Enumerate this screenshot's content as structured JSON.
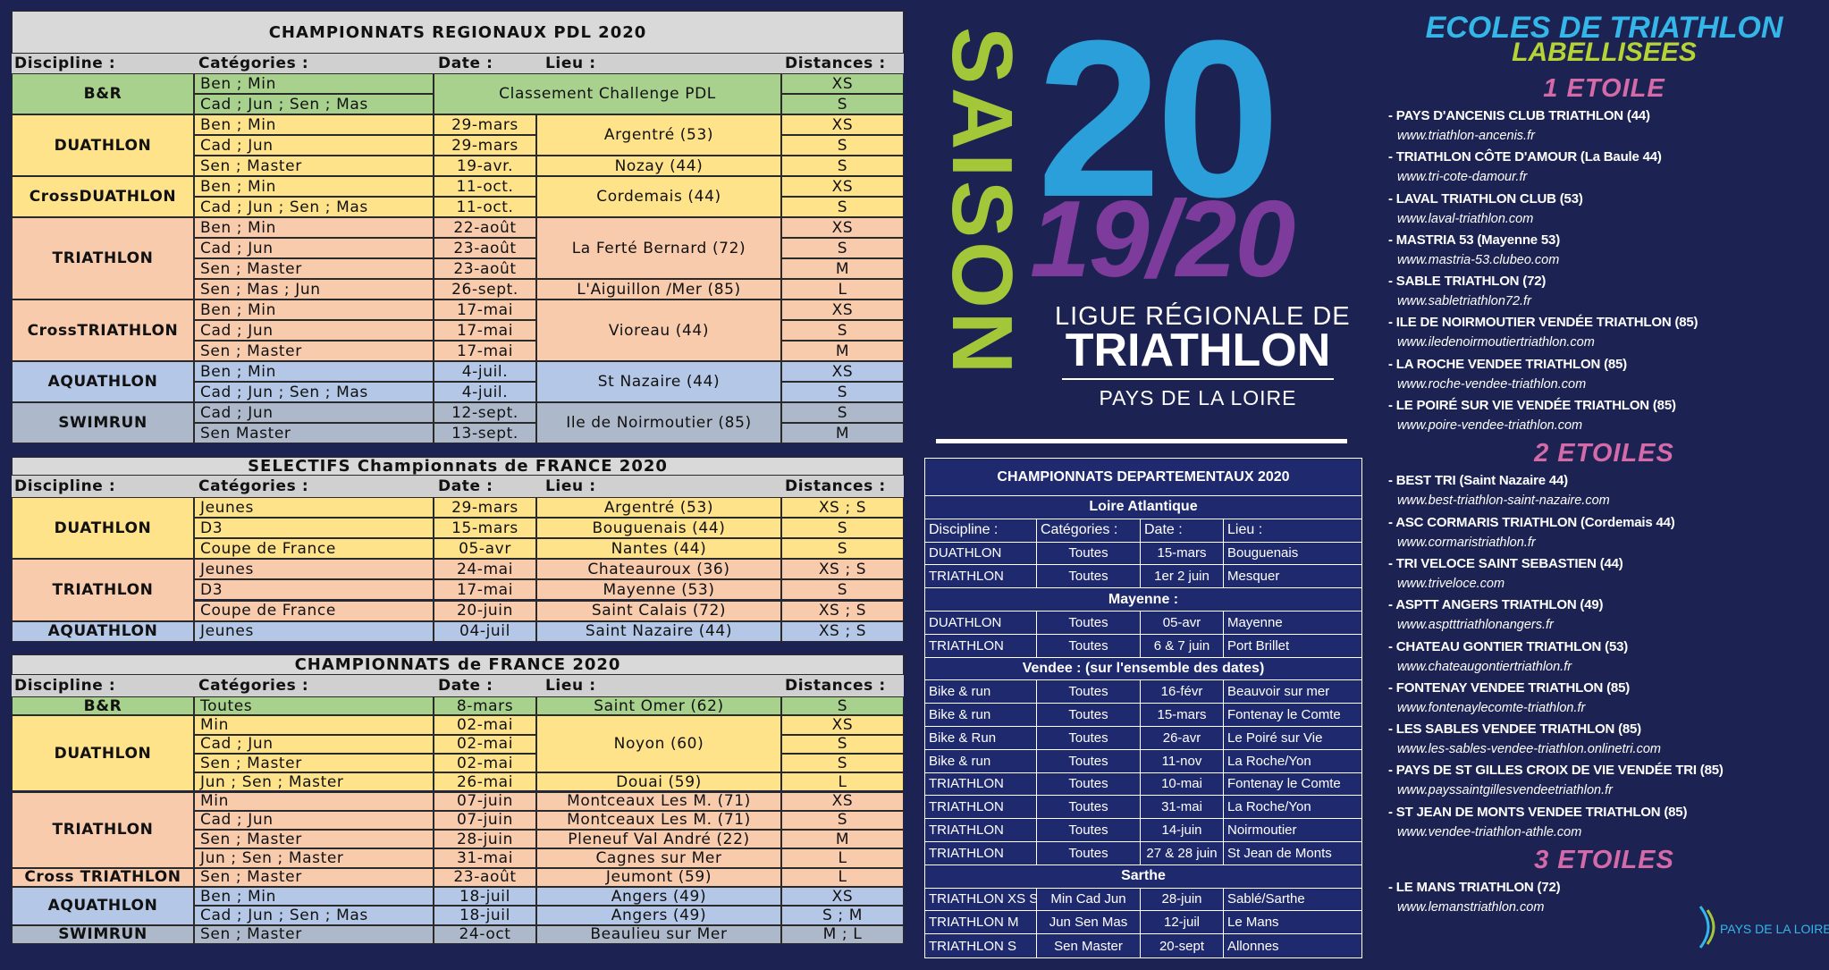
{
  "regional": {
    "title": "CHAMPIONNATS REGIONAUX  PDL 2020",
    "headers": [
      "Discipline :",
      "Catégories :",
      "Date :",
      "Lieu :",
      "Distances :"
    ],
    "groups": [
      {
        "discipline": "B&R",
        "color": "#a9d18e",
        "rows": [
          {
            "categories": "Ben ; Min",
            "lieu": "Classement Challenge PDL",
            "distance": "XS"
          },
          {
            "categories": "Cad ; Jun ; Sen ; Mas",
            "lieu": null,
            "distance": "S"
          }
        ]
      },
      {
        "discipline": "DUATHLON",
        "color": "#ffe38a",
        "rows": [
          {
            "categories": "Ben ; Min",
            "date": "29-mars",
            "lieu": "Argentré (53)",
            "distance": "XS"
          },
          {
            "categories": "Cad ; Jun",
            "date": "29-mars",
            "lieu": null,
            "distance": "S"
          },
          {
            "categories": "Sen ; Master",
            "date": "19-avr.",
            "lieu": "Nozay (44)",
            "distance": "S"
          }
        ]
      },
      {
        "discipline": "CrossDUATHLON",
        "color": "#ffe38a",
        "rows": [
          {
            "categories": "Ben ; Min",
            "date": "11-oct.",
            "lieu": "Cordemais (44)",
            "distance": "XS"
          },
          {
            "categories": "Cad ; Jun ; Sen ; Mas",
            "date": "11-oct.",
            "lieu": null,
            "distance": "S"
          }
        ]
      },
      {
        "discipline": "TRIATHLON",
        "color": "#f8cbad",
        "rows": [
          {
            "categories": "Ben ; Min",
            "date": "22-août",
            "lieu": "La Ferté Bernard (72)",
            "distance": "XS"
          },
          {
            "categories": "Cad ; Jun",
            "date": "23-août",
            "lieu": null,
            "distance": "S"
          },
          {
            "categories": "Sen ; Master",
            "date": "23-août",
            "lieu": null,
            "distance": "M"
          },
          {
            "categories": "Sen ; Mas ; Jun",
            "date": "26-sept.",
            "lieu": "L'Aiguillon /Mer (85)",
            "distance": "L"
          }
        ]
      },
      {
        "discipline": "CrossTRIATHLON",
        "color": "#f8cbad",
        "rows": [
          {
            "categories": "Ben ; Min",
            "date": "17-mai",
            "lieu": "Vioreau (44)",
            "distance": "XS"
          },
          {
            "categories": "Cad ; Jun",
            "date": "17-mai",
            "lieu": null,
            "distance": "S"
          },
          {
            "categories": "Sen ; Master",
            "date": "17-mai",
            "lieu": null,
            "distance": "M"
          }
        ]
      },
      {
        "discipline": "AQUATHLON",
        "color": "#b4c7e7",
        "rows": [
          {
            "categories": "Ben ; Min",
            "date": "4-juil.",
            "lieu": "St Nazaire (44)",
            "distance": "XS"
          },
          {
            "categories": "Cad ; Jun ; Sen ; Mas",
            "date": "4-juil.",
            "lieu": null,
            "distance": "S"
          }
        ]
      },
      {
        "discipline": "SWIMRUN",
        "color": "#adb9ca",
        "rows": [
          {
            "categories": "Cad ; Jun",
            "date": "12-sept.",
            "lieu": "Ile de Noirmoutier (85)",
            "distance": "S"
          },
          {
            "categories": "Sen Master",
            "date": "13-sept.",
            "lieu": null,
            "distance": "M"
          }
        ]
      }
    ]
  },
  "selectifs": {
    "title": "SELECTIFS Championnats de FRANCE 2020",
    "headers": [
      "Discipline :",
      "Catégories :",
      "Date :",
      "Lieu :",
      "Distances :"
    ],
    "groups": [
      {
        "discipline": "DUATHLON",
        "color": "#ffe38a",
        "rows": [
          {
            "categories": "Jeunes",
            "date": "29-mars",
            "lieu": "Argentré (53)",
            "distance": "XS ; S"
          },
          {
            "categories": "D3",
            "date": "15-mars",
            "lieu": "Bouguenais (44)",
            "distance": "S"
          },
          {
            "categories": "Coupe de France",
            "date": "05-avr",
            "lieu": "Nantes (44)",
            "distance": "S"
          }
        ]
      },
      {
        "discipline": "TRIATHLON",
        "color": "#f8cbad",
        "rows": [
          {
            "categories": "Jeunes",
            "date": "24-mai",
            "lieu": "Chateauroux (36)",
            "distance": "XS ; S"
          },
          {
            "categories": "D3",
            "date": "17-mai",
            "lieu": "Mayenne (53)",
            "distance": "S"
          },
          {
            "categories": "Coupe de France",
            "date": "20-juin",
            "lieu": "Saint Calais (72)",
            "distance": "XS ; S"
          }
        ]
      },
      {
        "discipline": "AQUATHLON",
        "color": "#b4c7e7",
        "rows": [
          {
            "categories": "Jeunes",
            "date": "04-juil",
            "lieu": "Saint Nazaire (44)",
            "distance": "XS ; S"
          }
        ]
      }
    ]
  },
  "france": {
    "title": "CHAMPIONNATS de FRANCE 2020",
    "headers": [
      "Discipline :",
      "Catégories :",
      "Date :",
      "Lieu :",
      "Distances :"
    ],
    "groups": [
      {
        "discipline": "B&R",
        "color": "#a9d18e",
        "rows": [
          {
            "categories": "Toutes",
            "date": "8-mars",
            "lieu": "Saint Omer (62)",
            "distance": "S"
          }
        ]
      },
      {
        "discipline": "DUATHLON",
        "color": "#ffe38a",
        "rows": [
          {
            "categories": "Min",
            "date": "02-mai",
            "lieu": "Noyon (60)",
            "distance": "XS"
          },
          {
            "categories": "Cad ; Jun",
            "date": "02-mai",
            "lieu": null,
            "distance": "S"
          },
          {
            "categories": "Sen ; Master",
            "date": "02-mai",
            "lieu": null,
            "distance": "S"
          },
          {
            "categories": "Jun ; Sen ; Master",
            "date": "26-mai",
            "lieu": "Douai (59)",
            "distance": "L"
          }
        ]
      },
      {
        "discipline": "TRIATHLON",
        "color": "#f8cbad",
        "rows": [
          {
            "categories": "Min",
            "date": "07-juin",
            "lieu": "Montceaux Les M. (71)",
            "distance": "XS"
          },
          {
            "categories": "Cad ; Jun",
            "date": "07-juin",
            "lieu": "Montceaux Les M. (71)",
            "distance": "S"
          },
          {
            "categories": "Sen ; Master",
            "date": "28-juin",
            "lieu": "Pleneuf Val André (22)",
            "distance": "M"
          },
          {
            "categories": "Jun ; Sen ; Master",
            "date": "31-mai",
            "lieu": "Cagnes sur Mer",
            "distance": "L"
          }
        ]
      },
      {
        "discipline": "Cross TRIATHLON",
        "color": "#f8cbad",
        "rows": [
          {
            "categories": "Sen ; Master",
            "date": "23-août",
            "lieu": "Jeumont (59)",
            "distance": "L"
          }
        ]
      },
      {
        "discipline": "AQUATHLON",
        "color": "#b4c7e7",
        "rows": [
          {
            "categories": "Ben ; Min",
            "date": "18-juil",
            "lieu": "Angers (49)",
            "distance": "XS"
          },
          {
            "categories": "Cad ; Jun ; Sen ; Mas",
            "date": "18-juil",
            "lieu": "Angers (49)",
            "distance": "S ; M"
          }
        ]
      },
      {
        "discipline": "SWIMRUN",
        "color": "#adb9ca",
        "rows": [
          {
            "categories": "Sen ; Master",
            "date": "24-oct",
            "lieu": "Beaulieu sur Mer",
            "distance": "M ; L"
          }
        ]
      }
    ]
  },
  "logo": {
    "vertical": "SAISON",
    "big": "20",
    "season": "19/20",
    "league_line1": "LIGUE RÉGIONALE DE",
    "league_line2": "TRIATHLON",
    "region": "PAYS DE LA LOIRE"
  },
  "departmental": {
    "title": "CHAMPIONNATS DEPARTEMENTAUX 2020",
    "headers": [
      "Discipline :",
      "Catégories :",
      "Date :",
      "Lieu :"
    ],
    "sections": [
      {
        "name": "Loire Atlantique",
        "rows": [
          [
            "DUATHLON",
            "Toutes",
            "15-mars",
            "Bouguenais"
          ],
          [
            "TRIATHLON",
            "Toutes",
            "1er 2 juin",
            "Mesquer"
          ]
        ]
      },
      {
        "name": "Mayenne :",
        "rows": [
          [
            "DUATHLON",
            "Toutes",
            "05-avr",
            "Mayenne"
          ],
          [
            "TRIATHLON",
            "Toutes",
            "6 & 7 juin",
            "Port Brillet"
          ]
        ]
      },
      {
        "name": "Vendee : (sur l'ensemble des dates)",
        "rows": [
          [
            "Bike & run",
            "Toutes",
            "16-févr",
            "Beauvoir sur mer"
          ],
          [
            "Bike & run",
            "Toutes",
            "15-mars",
            "Fontenay le Comte"
          ],
          [
            "Bike & Run",
            "Toutes",
            "26-avr",
            "Le Poiré sur Vie"
          ],
          [
            "Bike & run",
            "Toutes",
            "11-nov",
            "La Roche/Yon"
          ],
          [
            "TRIATHLON",
            "Toutes",
            "10-mai",
            "Fontenay le Comte"
          ],
          [
            "TRIATHLON",
            "Toutes",
            "31-mai",
            "La Roche/Yon"
          ],
          [
            "TRIATHLON",
            "Toutes",
            "14-juin",
            "Noirmoutier"
          ],
          [
            "TRIATHLON",
            "Toutes",
            "27 & 28 juin",
            "St Jean de Monts"
          ]
        ]
      },
      {
        "name": "Sarthe",
        "rows": [
          [
            "TRIATHLON XS S",
            "Min Cad Jun",
            "28-juin",
            "Sablé/Sarthe"
          ],
          [
            "TRIATHLON M",
            "Jun Sen Mas",
            "12-juil",
            "Le Mans"
          ],
          [
            "TRIATHLON S",
            "Sen Master",
            "20-sept",
            "Allonnes"
          ]
        ]
      }
    ]
  },
  "schools": {
    "title_line1": "ECOLES DE TRIATHLON",
    "title_line2": "LABELLISEES",
    "levels": [
      {
        "heading": "1 ETOILE",
        "clubs": [
          {
            "name": "- PAYS D'ANCENIS CLUB TRIATHLON (44)",
            "url": "www.triathlon-ancenis.fr"
          },
          {
            "name": "- TRIATHLON CÔTE D'AMOUR (La Baule 44)",
            "url": "www.tri-cote-damour.fr"
          },
          {
            "name": "- LAVAL TRIATHLON CLUB (53)",
            "url": "www.laval-triathlon.com"
          },
          {
            "name": "- MASTRIA 53  (Mayenne 53)",
            "url": "www.mastria-53.clubeo.com"
          },
          {
            "name": "- SABLE TRIATHLON (72)",
            "url": "www.sabletriathlon72.fr"
          },
          {
            "name": "- ILE DE NOIRMOUTIER VENDÉE TRIATHLON (85)",
            "url": "www.iledenoirmoutiertriathlon.com"
          },
          {
            "name": "- LA ROCHE VENDEE TRIATHLON (85)",
            "url": "www.roche-vendee-triathlon.com"
          },
          {
            "name": "- LE POIRÉ SUR VIE VENDÉE TRIATHLON (85)",
            "url": "www.poire-vendee-triathlon.com"
          }
        ]
      },
      {
        "heading": "2 ETOILES",
        "clubs": [
          {
            "name": "- BEST TRI (Saint Nazaire 44)",
            "url": "www.best-triathlon-saint-nazaire.com"
          },
          {
            "name": "- ASC CORMARIS TRIATHLON (Cordemais 44)",
            "url": "www.cormaristriathlon.fr"
          },
          {
            "name": "- TRI VELOCE SAINT SEBASTIEN (44)",
            "url": "www.triveloce.com"
          },
          {
            "name": "- ASPTT ANGERS TRIATHLON (49)",
            "url": "www.asptttriathlonangers.fr"
          },
          {
            "name": "- CHATEAU GONTIER TRIATHLON (53)",
            "url": "www.chateaugontiertriathlon.fr"
          },
          {
            "name": "- FONTENAY VENDEE TRIATHLON (85)",
            "url": "www.fontenaylecomte-triathlon.fr"
          },
          {
            "name": "- LES SABLES VENDEE TRIATHLON (85)",
            "url": "www.les-sables-vendee-triathlon.onlinetri.com"
          },
          {
            "name": "- PAYS DE ST GILLES CROIX DE VIE VENDÉE TRI (85)",
            "url": "www.payssaintgillesvendeetriathlon.fr"
          },
          {
            "name": "- ST JEAN DE MONTS VENDEE TRIATHLON (85)",
            "url": "www.vendee-triathlon-athle.com"
          }
        ]
      },
      {
        "heading": "3 ETOILES",
        "clubs": [
          {
            "name": "- LE MANS TRIATHLON (72)",
            "url": "www.lemanstriathlon.com"
          }
        ]
      }
    ]
  },
  "footer_logo": "PAYS DE LA LOIRE"
}
